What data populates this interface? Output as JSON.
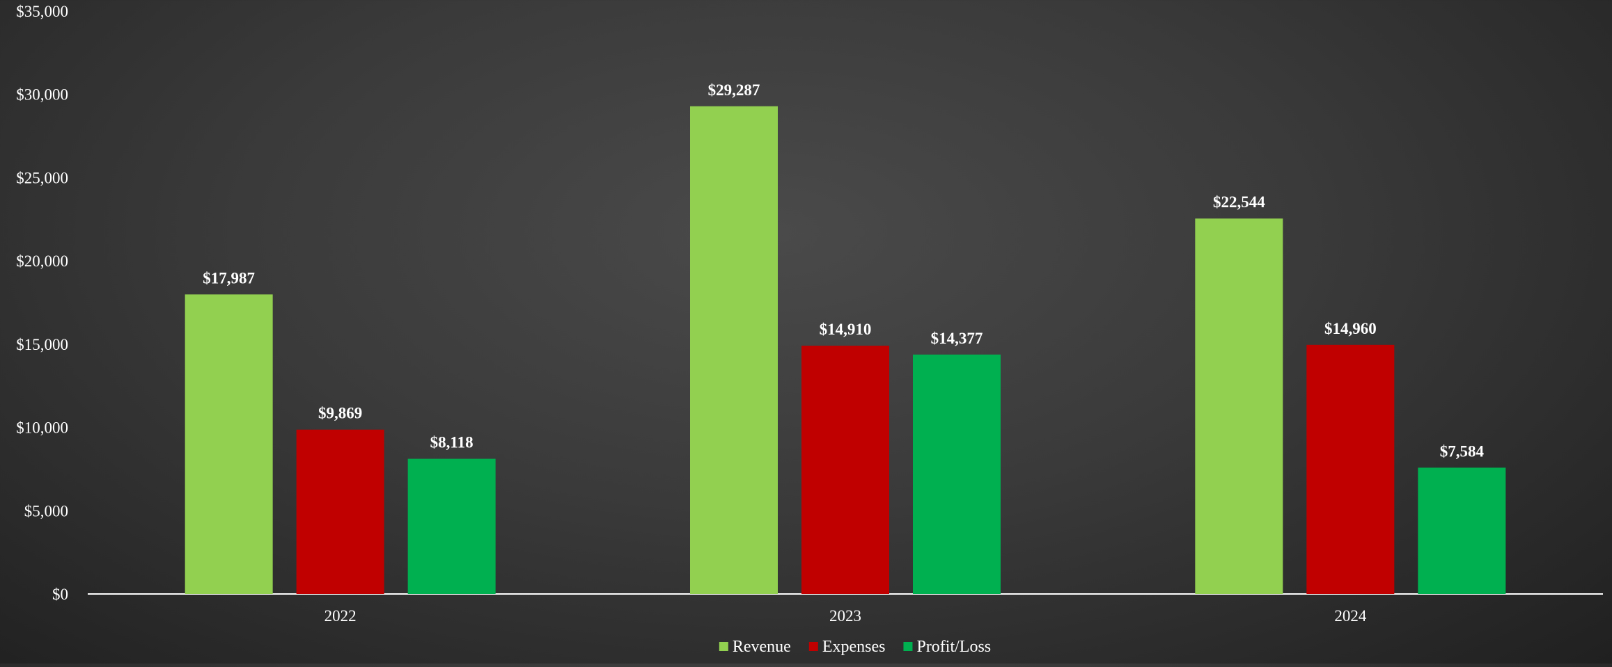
{
  "chart_data": {
    "type": "bar",
    "title": "",
    "xlabel": "",
    "ylabel": "",
    "categories": [
      "2022",
      "2023",
      "2024"
    ],
    "series": [
      {
        "name": "Revenue",
        "values": [
          17987,
          29287,
          22544
        ],
        "labels": [
          "$17,987",
          "$29,287",
          "$22,544"
        ],
        "color": "#92d050"
      },
      {
        "name": "Expenses",
        "values": [
          9869,
          14910,
          14960
        ],
        "labels": [
          "$9,869",
          "$14,910",
          "$14,960"
        ],
        "color": "#c00000"
      },
      {
        "name": "Profit/Loss",
        "values": [
          8118,
          14377,
          7584
        ],
        "labels": [
          "$8,118",
          "$14,377",
          "$7,584"
        ],
        "color": "#00b050"
      }
    ],
    "ylim": [
      0,
      35000
    ],
    "yticks": [
      0,
      5000,
      10000,
      15000,
      20000,
      25000,
      30000,
      35000
    ],
    "ytick_labels": [
      "$0",
      "$5,000",
      "$10,000",
      "$15,000",
      "$20,000",
      "$25,000",
      "$30,000",
      "$35,000"
    ],
    "grid": false,
    "legend_position": "bottom-center",
    "axis_color": "#ffffff"
  }
}
